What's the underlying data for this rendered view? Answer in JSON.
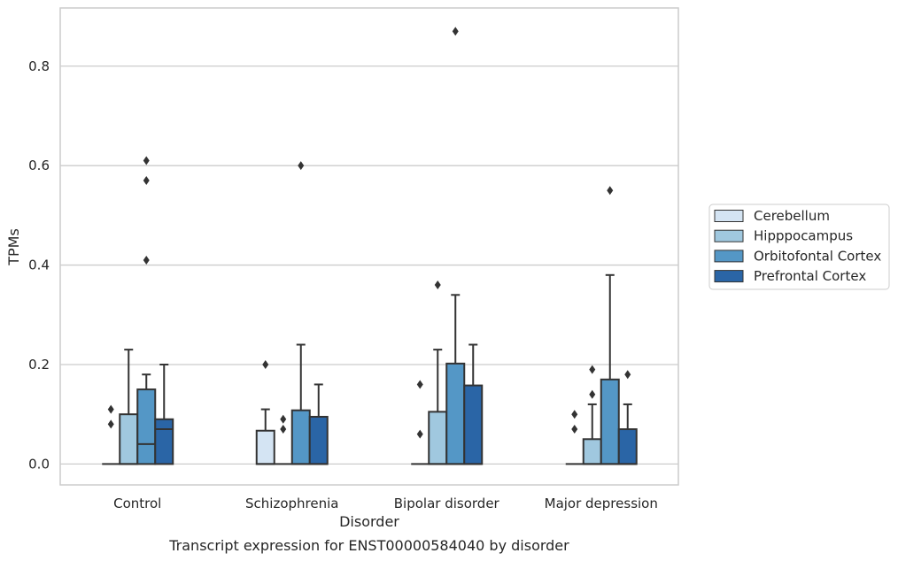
{
  "chart_data": {
    "type": "box",
    "title": "",
    "caption": "Transcript expression for ENST00000584040 by disorder",
    "xlabel": "Disorder",
    "ylabel": "TPMs",
    "ylim": [
      -0.042,
      0.917
    ],
    "yticks": [
      0.0,
      0.2,
      0.4,
      0.6,
      0.8
    ],
    "ytick_labels": [
      "0.0",
      "0.2",
      "0.4",
      "0.6",
      "0.8"
    ],
    "grid": "horizontal",
    "legend_position": "right",
    "categories": [
      "Control",
      "Schizophrenia",
      "Bipolar disorder",
      "Major depression"
    ],
    "series": [
      {
        "name": "Cerebellum",
        "color": "#d4e4f3",
        "boxes": [
          {
            "q1": 0.0,
            "median": 0.0,
            "q3": 0.0,
            "whislo": 0.0,
            "whishi": 0.0,
            "fliers": [
              0.08,
              0.11
            ]
          },
          {
            "q1": 0.0,
            "median": 0.0,
            "q3": 0.067,
            "whislo": 0.0,
            "whishi": 0.11,
            "fliers": [
              0.2
            ]
          },
          {
            "q1": 0.0,
            "median": 0.0,
            "q3": 0.0,
            "whislo": 0.0,
            "whishi": 0.0,
            "fliers": [
              0.06,
              0.16
            ]
          },
          {
            "q1": 0.0,
            "median": 0.0,
            "q3": 0.0,
            "whislo": 0.0,
            "whishi": 0.0,
            "fliers": [
              0.07,
              0.1
            ]
          }
        ]
      },
      {
        "name": "Hipppocampus",
        "color": "#a0c8df",
        "boxes": [
          {
            "q1": 0.0,
            "median": 0.0,
            "q3": 0.1,
            "whislo": 0.0,
            "whishi": 0.23,
            "fliers": []
          },
          {
            "q1": 0.0,
            "median": 0.0,
            "q3": 0.0,
            "whislo": 0.0,
            "whishi": 0.0,
            "fliers": [
              0.07,
              0.09
            ]
          },
          {
            "q1": 0.0,
            "median": 0.0,
            "q3": 0.105,
            "whislo": 0.0,
            "whishi": 0.23,
            "fliers": [
              0.36
            ]
          },
          {
            "q1": 0.0,
            "median": 0.0,
            "q3": 0.05,
            "whislo": 0.0,
            "whishi": 0.12,
            "fliers": [
              0.14,
              0.19
            ]
          }
        ]
      },
      {
        "name": "Orbitofontal Cortex",
        "color": "#5497c6",
        "boxes": [
          {
            "q1": 0.0,
            "median": 0.04,
            "q3": 0.15,
            "whislo": 0.0,
            "whishi": 0.18,
            "fliers": [
              0.41,
              0.57,
              0.61
            ]
          },
          {
            "q1": 0.0,
            "median": 0.0,
            "q3": 0.108,
            "whislo": 0.0,
            "whishi": 0.24,
            "fliers": [
              0.6
            ]
          },
          {
            "q1": 0.0,
            "median": 0.0,
            "q3": 0.202,
            "whislo": 0.0,
            "whishi": 0.34,
            "fliers": [
              0.87
            ]
          },
          {
            "q1": 0.0,
            "median": 0.0,
            "q3": 0.17,
            "whislo": 0.0,
            "whishi": 0.38,
            "fliers": [
              0.55
            ]
          }
        ]
      },
      {
        "name": "Prefrontal Cortex",
        "color": "#2a65a6",
        "boxes": [
          {
            "q1": 0.0,
            "median": 0.07,
            "q3": 0.09,
            "whislo": 0.0,
            "whishi": 0.2,
            "fliers": []
          },
          {
            "q1": 0.0,
            "median": 0.0,
            "q3": 0.095,
            "whislo": 0.0,
            "whishi": 0.16,
            "fliers": []
          },
          {
            "q1": 0.0,
            "median": 0.0,
            "q3": 0.158,
            "whislo": 0.0,
            "whishi": 0.24,
            "fliers": []
          },
          {
            "q1": 0.0,
            "median": 0.0,
            "q3": 0.07,
            "whislo": 0.0,
            "whishi": 0.12,
            "fliers": [
              0.18
            ]
          }
        ]
      }
    ]
  }
}
